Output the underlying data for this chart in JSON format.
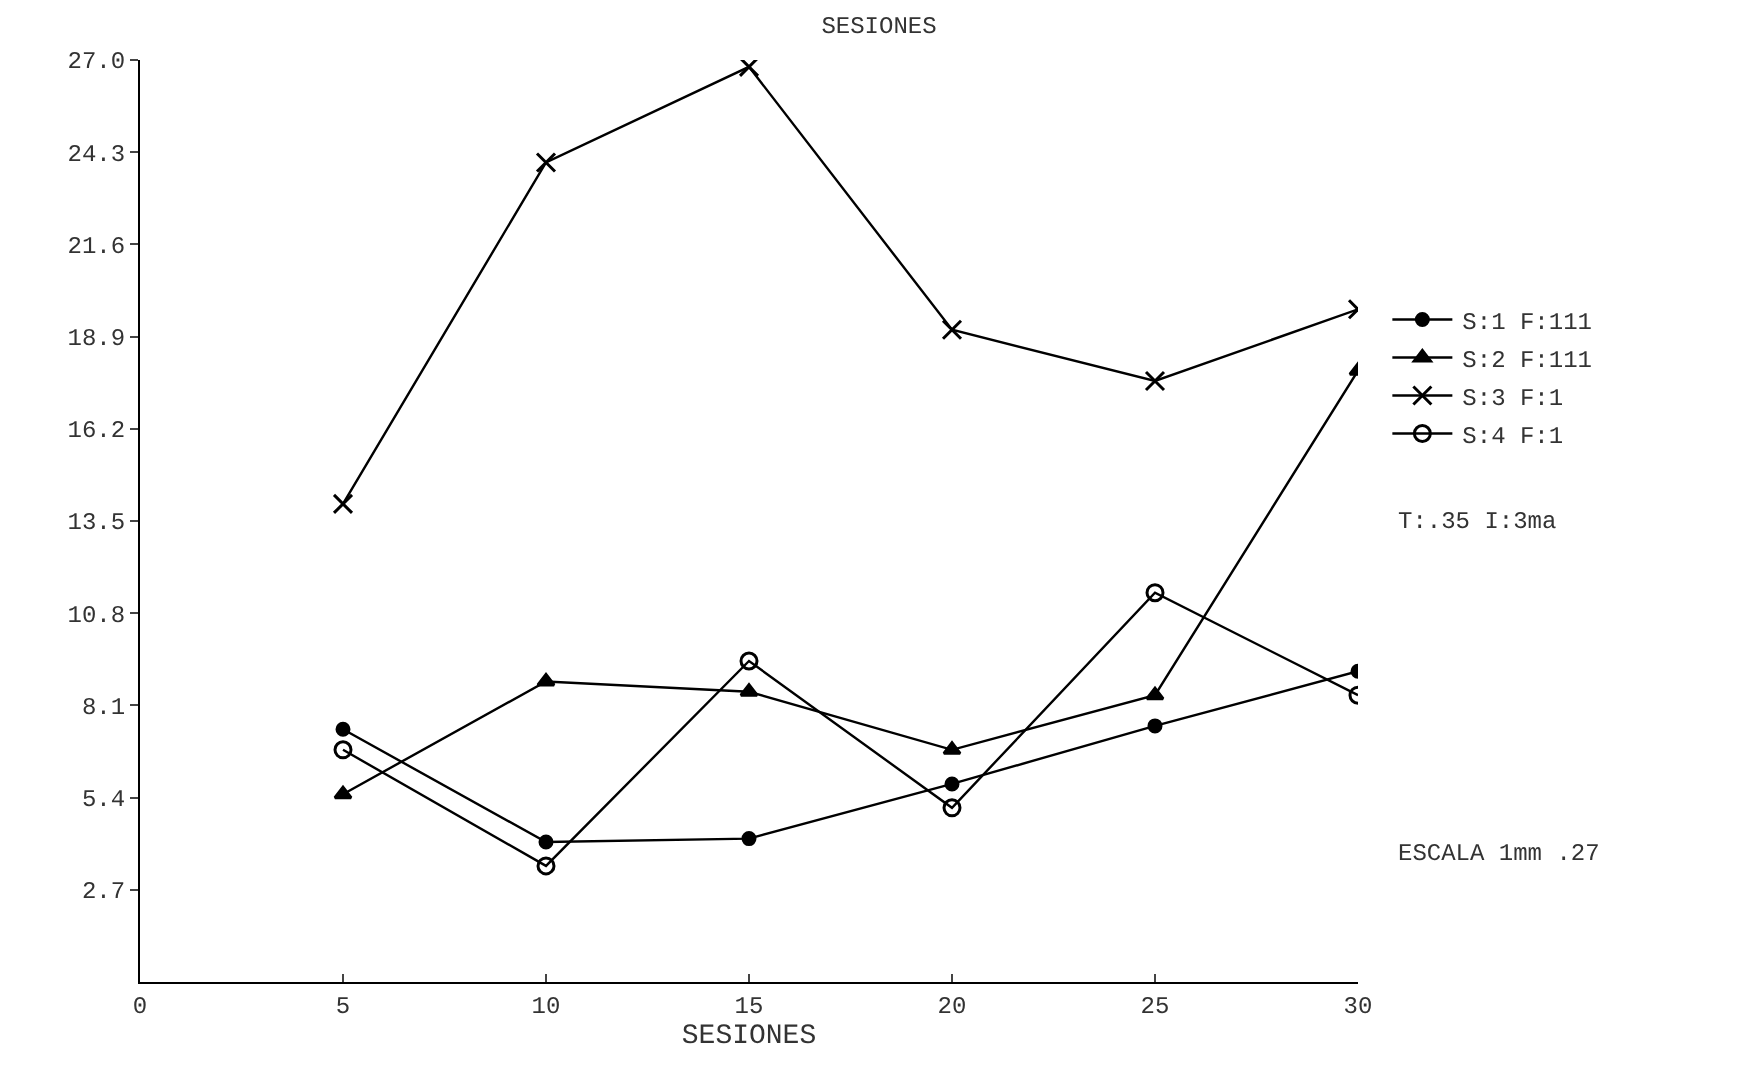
{
  "chart_data": {
    "type": "line",
    "title": "SESIONES",
    "xlabel": "SESIONES",
    "x": [
      5,
      10,
      15,
      20,
      25,
      30
    ],
    "series": [
      {
        "name": "S:1 F:111",
        "color": "#000000",
        "marker": "circle",
        "values": [
          7.4,
          4.1,
          4.2,
          5.8,
          7.5,
          9.1
        ]
      },
      {
        "name": "S:2 F:111",
        "color": "#000000",
        "marker": "triangle",
        "values": [
          5.5,
          8.8,
          8.5,
          6.8,
          8.4,
          17.9
        ]
      },
      {
        "name": "S:3 F:1",
        "color": "#000000",
        "marker": "cross",
        "values": [
          14.0,
          24.0,
          26.8,
          19.1,
          17.6,
          19.7
        ]
      },
      {
        "name": "S:4 F:1",
        "color": "#000000",
        "marker": "circle-open",
        "values": [
          6.8,
          3.4,
          9.4,
          5.1,
          11.4,
          8.4
        ]
      }
    ],
    "xlim": [
      0,
      30
    ],
    "xticks": [
      0,
      5,
      10,
      15,
      20,
      25,
      30
    ],
    "ylim": [
      0,
      27.0
    ],
    "yticks": [
      {
        "value": 2.7,
        "label": "2.7"
      },
      {
        "value": 5.4,
        "label": "5.4"
      },
      {
        "value": 8.1,
        "label": "8.1"
      },
      {
        "value": 10.8,
        "label": "10.8"
      },
      {
        "value": 13.5,
        "label": "13.5"
      },
      {
        "value": 16.2,
        "label": "16.2"
      },
      {
        "value": 18.9,
        "label": "18.9"
      },
      {
        "value": 21.6,
        "label": "21.6"
      },
      {
        "value": 24.3,
        "label": "24.3"
      },
      {
        "value": 27,
        "label": "27.0"
      }
    ],
    "annotations": [
      "T:.35 I:3ma",
      "ESCALA 1mm .27"
    ],
    "legend": "right",
    "line_style": "solid"
  }
}
